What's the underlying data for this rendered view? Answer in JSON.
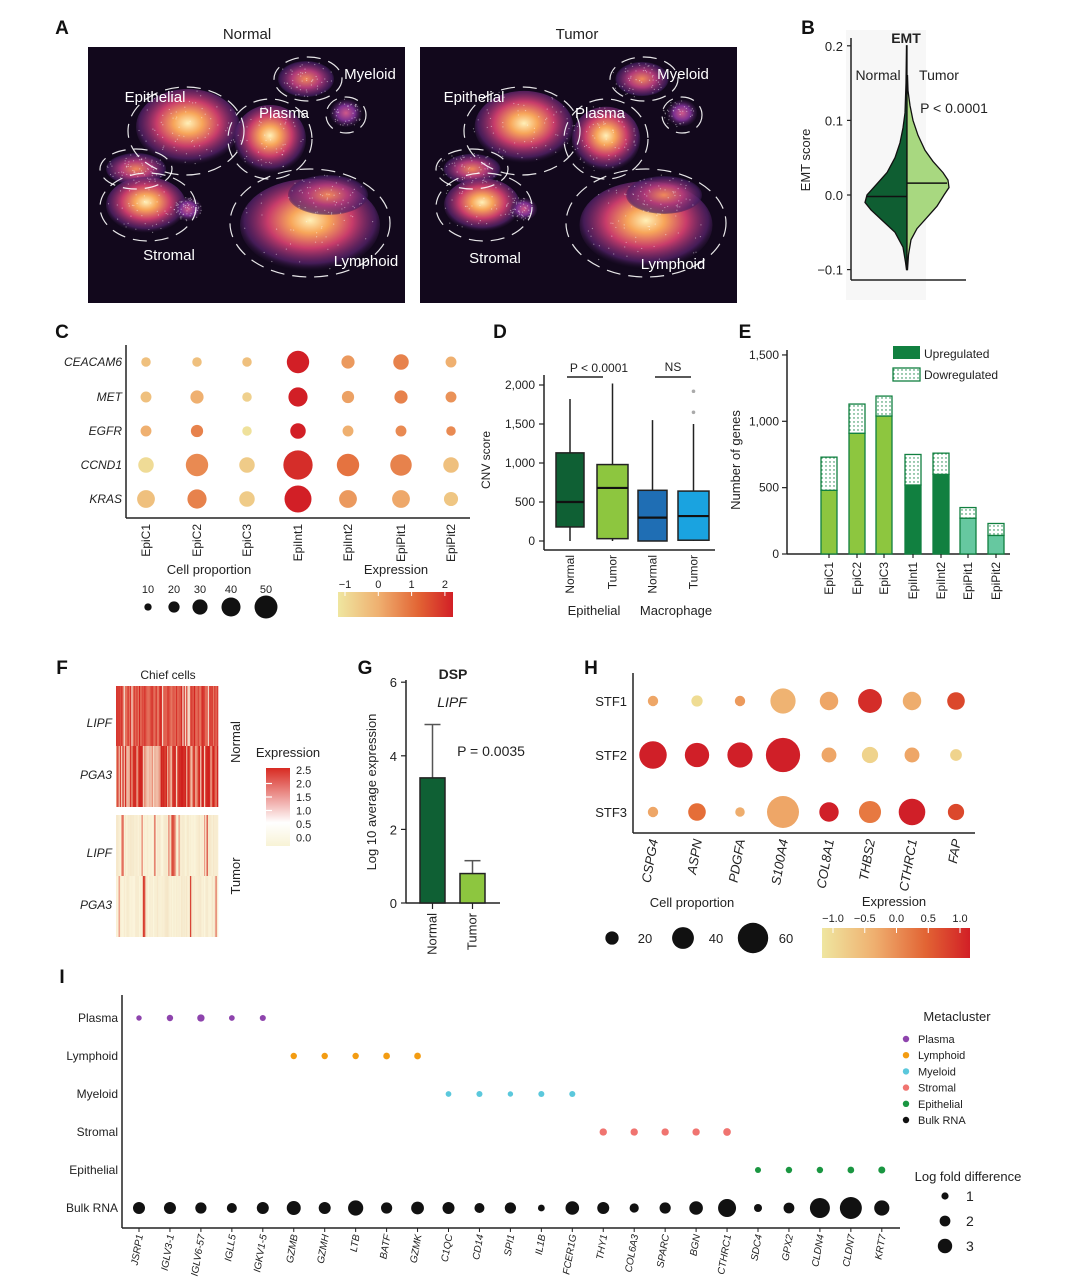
{
  "letters": [
    "A",
    "B",
    "C",
    "D",
    "E",
    "F",
    "G",
    "H",
    "I"
  ],
  "chart_data": [
    {
      "type": "scatter",
      "kind": "umap",
      "titles": [
        "Normal",
        "Tumor"
      ],
      "clusters": [
        "Epithelial",
        "Plasma",
        "Myeloid",
        "Stromal",
        "Lymphoid"
      ]
    },
    {
      "type": "violin",
      "title": "EMT",
      "ylabel": "EMT score",
      "yticks": [
        "0.2",
        "0.1",
        "0.0",
        "−0.1"
      ],
      "ytick_values": [
        0.2,
        0.1,
        0.0,
        -0.1
      ],
      "ylim": [
        -0.1,
        0.2
      ],
      "groups": [
        "Normal",
        "Tumor"
      ],
      "medians": [
        -0.002,
        0.016
      ],
      "colors": [
        "#0f5e32",
        "#a8d880"
      ],
      "pvalue": "P < 0.0001"
    },
    {
      "type": "dot",
      "genes": [
        "CEACAM6",
        "MET",
        "EGFR",
        "CCND1",
        "KRAS"
      ],
      "clusters": [
        "EpiC1",
        "EpiC2",
        "EpiC3",
        "EpiInt1",
        "EpiInt2",
        "EpiPit1",
        "EpiPit2"
      ],
      "proportion": [
        [
          12,
          12,
          12,
          40,
          20,
          25,
          15
        ],
        [
          15,
          20,
          12,
          33,
          18,
          20,
          15
        ],
        [
          15,
          18,
          12,
          25,
          15,
          15,
          12
        ],
        [
          25,
          40,
          25,
          55,
          40,
          38,
          25
        ],
        [
          30,
          33,
          25,
          50,
          30,
          30,
          22
        ]
      ],
      "expression": [
        [
          -0.3,
          -0.3,
          -0.3,
          2.0,
          0.3,
          0.6,
          0.0
        ],
        [
          -0.3,
          0.0,
          -0.6,
          2.0,
          0.2,
          0.6,
          0.4
        ],
        [
          0.0,
          0.6,
          -0.9,
          2.0,
          0.0,
          0.5,
          0.5
        ],
        [
          -0.8,
          0.5,
          -0.5,
          1.8,
          0.8,
          0.6,
          -0.3
        ],
        [
          -0.3,
          0.6,
          -0.5,
          2.0,
          0.3,
          0.1,
          -0.4
        ]
      ],
      "size_legend_title": "Cell proportion",
      "size_legend": [
        "10",
        "20",
        "30",
        "40",
        "50"
      ],
      "size_legend_values": [
        10,
        20,
        30,
        40,
        50
      ],
      "color_legend_title": "Expression",
      "color_legend": [
        "−1",
        "0",
        "1",
        "2"
      ],
      "color_legend_values": [
        -1,
        0,
        1,
        2
      ]
    },
    {
      "type": "box",
      "ylabel": "CNV score",
      "yticks": [
        "2,000",
        "1,500",
        "1,000",
        "500",
        "0"
      ],
      "ytick_values": [
        2000,
        1500,
        1000,
        500,
        0
      ],
      "ylim": [
        0,
        2000
      ],
      "boxes": [
        {
          "label": "Normal",
          "group": 0,
          "min": 0,
          "q1": 180,
          "median": 500,
          "q3": 1130,
          "max": 1820,
          "outliers": [],
          "color": "#0f6034"
        },
        {
          "label": "Tumor",
          "group": 0,
          "min": 0,
          "q1": 30,
          "median": 680,
          "q3": 980,
          "max": 2020,
          "outliers": [],
          "color": "#8dc63f"
        },
        {
          "label": "Normal",
          "group": 1,
          "min": 0,
          "q1": 0,
          "median": 300,
          "q3": 650,
          "max": 1550,
          "outliers": [],
          "color": "#1f6eb4"
        },
        {
          "label": "Tumor",
          "group": 1,
          "min": 0,
          "q1": 10,
          "median": 320,
          "q3": 640,
          "max": 1500,
          "outliers": [
            1650,
            1920
          ],
          "color": "#1aa3e0"
        }
      ],
      "groups": [
        "Epithelial",
        "Macrophage"
      ],
      "annotations": [
        "P < 0.0001",
        "NS"
      ]
    },
    {
      "type": "bar",
      "stacked": true,
      "ylabel": "Number of genes",
      "yticks": [
        "1,500",
        "1,000",
        "500",
        "0"
      ],
      "ytick_values": [
        1500,
        1000,
        500,
        0
      ],
      "ylim": [
        0,
        1500
      ],
      "categories": [
        "EpiC1",
        "EpiC2",
        "EpiC3",
        "EpiInt1",
        "EpiInt2",
        "EpiPit1",
        "EpiPit2"
      ],
      "series": [
        {
          "name": "Upregulated",
          "values": [
            480,
            910,
            1040,
            520,
            600,
            270,
            140
          ]
        },
        {
          "name": "Dowregulated",
          "values": [
            250,
            220,
            150,
            230,
            160,
            80,
            90
          ]
        }
      ],
      "bar_colors": [
        "#8dc63f",
        "#8dc63f",
        "#8dc63f",
        "#118040",
        "#118040",
        "#66c8a0",
        "#66c8a0"
      ],
      "legend_placement": "top-right"
    },
    {
      "type": "heatmap",
      "title": "Chief cells",
      "row_groups": [
        "Normal",
        "Tumor"
      ],
      "rows": [
        "LIPF",
        "PGA3",
        "LIPF",
        "PGA3"
      ],
      "legend_title": "Expression",
      "legend_ticks": [
        "2.5",
        "2.0",
        "1.5",
        "1.0",
        "0.5",
        "0.0"
      ],
      "range": [
        0,
        2.5
      ]
    },
    {
      "type": "bar",
      "title": "DSP",
      "subtitle": "LIPF",
      "ylabel": "Log 10 average expression",
      "yticks": [
        "6",
        "4",
        "2",
        "0"
      ],
      "ytick_values": [
        6,
        4,
        2,
        0
      ],
      "ylim": [
        0,
        6
      ],
      "categories": [
        "Normal",
        "Tumor"
      ],
      "values": [
        3.4,
        0.8
      ],
      "error_upper": [
        4.85,
        1.15
      ],
      "colors": [
        "#0f6034",
        "#8dc63f"
      ],
      "pvalue": "P = 0.0035"
    },
    {
      "type": "dot",
      "rows": [
        "STF1",
        "STF2",
        "STF3"
      ],
      "genes": [
        "CSPG4",
        "ASPN",
        "PDGFA",
        "S100A4",
        "COL8A1",
        "THBS2",
        "CTHRC1",
        "FAP"
      ],
      "proportion": [
        [
          12,
          14,
          12,
          45,
          30,
          42,
          30,
          28
        ],
        [
          50,
          43,
          45,
          65,
          22,
          25,
          22,
          15
        ],
        [
          12,
          28,
          10,
          60,
          32,
          38,
          48,
          25
        ]
      ],
      "expression": [
        [
          -0.2,
          -0.9,
          0.0,
          -0.4,
          -0.2,
          0.9,
          -0.3,
          0.7
        ],
        [
          1.1,
          1.0,
          1.1,
          1.1,
          -0.2,
          -0.8,
          -0.2,
          -0.8
        ],
        [
          -0.2,
          0.4,
          -0.3,
          -0.2,
          1.1,
          0.3,
          1.1,
          0.7
        ]
      ],
      "size_legend_title": "Cell proportion",
      "size_legend": [
        "20",
        "40",
        "60"
      ],
      "size_legend_values": [
        20,
        40,
        60
      ],
      "color_legend_title": "Expression",
      "color_legend": [
        "−1.0",
        "−0.5",
        "0.0",
        "0.5",
        "1.0"
      ],
      "color_legend_values": [
        -1,
        -0.5,
        0,
        0.5,
        1
      ]
    },
    {
      "type": "dot",
      "rows": [
        "Plasma",
        "Lymphoid",
        "Myeloid",
        "Stromal",
        "Epithelial",
        "Bulk RNA"
      ],
      "row_colors": [
        "#8e44ad",
        "#f39c12",
        "#5bc8dc",
        "#f07470",
        "#1a9641",
        "#111111"
      ],
      "genes": [
        "JSRP1",
        "IGLV3-1",
        "IGLV6-57",
        "IGLL5",
        "IGKV1-5",
        "GZMB",
        "GZMH",
        "LTB",
        "BATF",
        "GZMK",
        "C1QC",
        "CD14",
        "SPI1",
        "IL1B",
        "FCER1G",
        "THY1",
        "COL6A3",
        "SPARC",
        "BGN",
        "CTHRC1",
        "SDC4",
        "GPX2",
        "CLDN4",
        "CLDN7",
        "KRT7"
      ],
      "metacluster_logfc": [
        0.7,
        1.0,
        1.3,
        0.8,
        0.9,
        1.0,
        1.0,
        1.0,
        1.1,
        1.1,
        0.8,
        0.9,
        0.7,
        0.9,
        0.9,
        1.3,
        1.3,
        1.3,
        1.3,
        1.4,
        0.9,
        1.0,
        1.0,
        1.1,
        1.2
      ],
      "bulk_logfc": [
        2.0,
        2.0,
        1.8,
        1.5,
        2.0,
        2.5,
        2.0,
        2.8,
        1.8,
        2.2,
        2.0,
        1.5,
        1.8,
        0.7,
        2.4,
        2.0,
        1.3,
        1.8,
        2.4,
        3.5,
        1.0,
        1.7,
        4.0,
        4.5,
        2.8
      ],
      "legend_title": "Metacluster",
      "legend": [
        "Plasma",
        "Lymphoid",
        "Myeloid",
        "Stromal",
        "Epithelial",
        "Bulk RNA"
      ],
      "size_legend_title": "Log fold difference",
      "size_legend": [
        "1",
        "2",
        "3"
      ],
      "size_legend_values": [
        1,
        2,
        3
      ]
    }
  ]
}
